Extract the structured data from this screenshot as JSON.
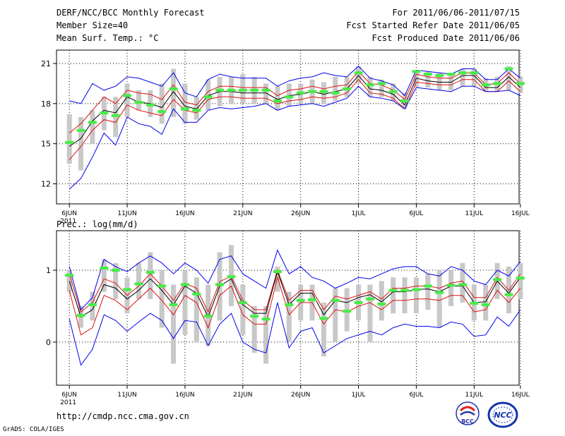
{
  "header": {
    "title": "DERF/NCC/BCC Monthly Forecast",
    "member_size": "Member Size=40",
    "variable_top": "Mean Surf. Temp.: °C",
    "period": "For 2011/06/06-2011/07/15",
    "started": "Fcst Started Refer Date 2011/06/05",
    "produced": "Fcst Produced Date 2011/06/06"
  },
  "footer": {
    "url": "http://cmdp.ncc.cma.gov.cn",
    "credit": "GrADS: COLA/IGES",
    "logo_bcc": "BCC",
    "logo_ncc": "NCC"
  },
  "colors": {
    "ensemble_bar": "#c8c8c8",
    "observed_marker": "#44ee44",
    "ensemble_mean": "#000000",
    "spread_band": "#dd1111",
    "extreme_band": "#0000ee"
  },
  "chart_data": [
    {
      "type": "line",
      "title": "Mean Surf. Temp.: °C",
      "xlabel": "",
      "ylabel": "",
      "ylim": [
        10.5,
        22
      ],
      "yticks": [
        12,
        15,
        18,
        21
      ],
      "x_ticks": [
        {
          "day": 1,
          "label": "6JUN"
        },
        {
          "day": 6,
          "label": "11JUN"
        },
        {
          "day": 11,
          "label": "16JUN"
        },
        {
          "day": 16,
          "label": "21JUN"
        },
        {
          "day": 21,
          "label": "26JUN"
        },
        {
          "day": 26,
          "label": "1JUL"
        },
        {
          "day": 31,
          "label": "6JUL"
        },
        {
          "day": 36,
          "label": "11JUL"
        },
        {
          "day": 40,
          "label": "16JUL"
        }
      ],
      "year_label": "2011",
      "days": [
        1,
        2,
        3,
        4,
        5,
        6,
        7,
        8,
        9,
        10,
        11,
        12,
        13,
        14,
        15,
        16,
        17,
        18,
        19,
        20,
        21,
        22,
        23,
        24,
        25,
        26,
        27,
        28,
        29,
        30,
        31,
        32,
        33,
        34,
        35,
        36,
        37,
        38,
        39,
        40
      ],
      "series": [
        {
          "name": "max",
          "role": "extreme",
          "values": [
            18.2,
            18.0,
            19.5,
            19.0,
            19.3,
            20.0,
            19.9,
            19.6,
            19.3,
            20.3,
            18.8,
            18.5,
            19.8,
            20.2,
            20.0,
            19.9,
            19.9,
            19.9,
            19.3,
            19.7,
            19.9,
            20.0,
            20.3,
            20.1,
            20.0,
            20.8,
            19.9,
            19.7,
            19.4,
            18.6,
            20.5,
            20.4,
            20.3,
            20.2,
            20.6,
            20.6,
            19.8,
            19.8,
            20.6,
            19.9
          ]
        },
        {
          "name": "mean_plus_sd",
          "role": "spread",
          "values": [
            15.8,
            16.5,
            17.5,
            18.5,
            18.0,
            19.0,
            18.8,
            18.7,
            18.3,
            19.4,
            18.1,
            17.9,
            18.9,
            19.3,
            19.3,
            19.2,
            19.2,
            19.2,
            18.6,
            19.0,
            19.1,
            19.3,
            19.1,
            19.3,
            19.4,
            20.4,
            19.5,
            19.4,
            19.0,
            18.3,
            20.2,
            20.0,
            19.9,
            19.9,
            20.3,
            20.3,
            19.4,
            19.5,
            20.3,
            19.5
          ]
        },
        {
          "name": "mean",
          "role": "mean",
          "values": [
            14.8,
            15.4,
            16.7,
            17.5,
            17.3,
            18.5,
            18.1,
            18.0,
            17.7,
            18.9,
            17.8,
            17.6,
            18.6,
            18.9,
            18.9,
            18.8,
            18.8,
            18.8,
            18.3,
            18.6,
            18.7,
            18.9,
            18.7,
            18.9,
            19.1,
            20.1,
            19.1,
            19.0,
            18.7,
            17.9,
            19.9,
            19.7,
            19.6,
            19.6,
            20.1,
            20.1,
            19.2,
            19.2,
            20.0,
            19.2
          ]
        },
        {
          "name": "mean_minus_sd",
          "role": "spread",
          "values": [
            13.8,
            14.8,
            16.0,
            16.8,
            16.6,
            17.9,
            17.5,
            17.3,
            17.1,
            18.3,
            17.5,
            17.3,
            18.3,
            18.5,
            18.5,
            18.4,
            18.4,
            18.4,
            18.0,
            18.2,
            18.3,
            18.5,
            18.4,
            18.5,
            18.8,
            19.8,
            18.8,
            18.7,
            18.4,
            17.6,
            19.6,
            19.5,
            19.4,
            19.4,
            19.8,
            19.8,
            18.9,
            18.9,
            19.7,
            18.9
          ]
        },
        {
          "name": "min",
          "role": "extreme",
          "values": [
            11.6,
            12.4,
            14.0,
            15.8,
            14.9,
            17.0,
            16.5,
            16.3,
            15.7,
            17.6,
            16.6,
            16.6,
            17.5,
            17.7,
            17.6,
            17.7,
            17.8,
            18.0,
            17.5,
            17.8,
            17.9,
            18.0,
            17.8,
            18.1,
            18.4,
            19.3,
            18.5,
            18.4,
            18.2,
            17.6,
            19.2,
            19.1,
            19.0,
            18.9,
            19.3,
            19.3,
            18.9,
            18.9,
            19.0,
            18.6
          ]
        }
      ],
      "observed": [
        15.1,
        16.0,
        16.6,
        17.3,
        17.1,
        18.6,
        18.1,
        17.9,
        17.4,
        19.1,
        17.6,
        17.5,
        18.5,
        19.0,
        19.0,
        19.0,
        19.0,
        19.0,
        18.2,
        18.5,
        18.8,
        18.9,
        18.9,
        18.8,
        19.1,
        20.3,
        19.4,
        19.5,
        18.9,
        18.2,
        20.4,
        20.2,
        20.1,
        20.2,
        20.3,
        20.3,
        19.4,
        19.5,
        20.6,
        19.5
      ],
      "ensemble_range": [
        [
          13.5,
          17.2
        ],
        [
          13.0,
          17.0
        ],
        [
          15.0,
          17.5
        ],
        [
          16.0,
          18.5
        ],
        [
          15.5,
          18.5
        ],
        [
          17.0,
          19.5
        ],
        [
          17.5,
          19.0
        ],
        [
          17.0,
          19.0
        ],
        [
          16.5,
          19.5
        ],
        [
          17.0,
          20.6
        ],
        [
          16.5,
          19.5
        ],
        [
          16.8,
          18.5
        ],
        [
          17.5,
          19.8
        ],
        [
          17.8,
          20.0
        ],
        [
          18.0,
          20.0
        ],
        [
          18.0,
          20.2
        ],
        [
          18.0,
          20.0
        ],
        [
          18.0,
          19.5
        ],
        [
          17.5,
          19.3
        ],
        [
          17.8,
          19.5
        ],
        [
          18.0,
          19.5
        ],
        [
          18.0,
          19.8
        ],
        [
          18.0,
          19.6
        ],
        [
          18.2,
          20.0
        ],
        [
          18.5,
          20.0
        ],
        [
          19.5,
          20.8
        ],
        [
          18.5,
          20.0
        ],
        [
          18.5,
          19.8
        ],
        [
          18.2,
          19.5
        ],
        [
          17.6,
          18.8
        ],
        [
          19.2,
          20.5
        ],
        [
          19.2,
          20.4
        ],
        [
          19.0,
          20.3
        ],
        [
          19.0,
          20.3
        ],
        [
          19.3,
          20.6
        ],
        [
          19.3,
          20.6
        ],
        [
          18.9,
          19.9
        ],
        [
          18.9,
          20.0
        ],
        [
          19.0,
          20.8
        ],
        [
          18.8,
          20.0
        ]
      ]
    },
    {
      "type": "line",
      "title": "Prec.: log(mm/d)",
      "xlabel": "",
      "ylabel": "",
      "ylim": [
        -0.6,
        1.55
      ],
      "yticks": [
        0,
        1
      ],
      "x_ticks": [
        {
          "day": 1,
          "label": "6JUN"
        },
        {
          "day": 6,
          "label": "11JUN"
        },
        {
          "day": 11,
          "label": "16JUN"
        },
        {
          "day": 16,
          "label": "21JUN"
        },
        {
          "day": 21,
          "label": "26JUN"
        },
        {
          "day": 26,
          "label": "1JUL"
        },
        {
          "day": 31,
          "label": "6JUL"
        },
        {
          "day": 36,
          "label": "11JUL"
        },
        {
          "day": 40,
          "label": "16JUL"
        }
      ],
      "year_label": "2011",
      "days": [
        1,
        2,
        3,
        4,
        5,
        6,
        7,
        8,
        9,
        10,
        11,
        12,
        13,
        14,
        15,
        16,
        17,
        18,
        19,
        20,
        21,
        22,
        23,
        24,
        25,
        26,
        27,
        28,
        29,
        30,
        31,
        32,
        33,
        34,
        35,
        36,
        37,
        38,
        39,
        40
      ],
      "series": [
        {
          "name": "max",
          "role": "extreme",
          "values": [
            1.05,
            0.45,
            0.62,
            1.15,
            1.05,
            0.98,
            1.1,
            1.2,
            1.1,
            0.95,
            1.1,
            1.0,
            0.82,
            1.15,
            1.2,
            0.95,
            0.85,
            0.75,
            1.28,
            0.95,
            1.05,
            0.9,
            0.85,
            0.75,
            0.82,
            0.9,
            0.88,
            0.95,
            1.02,
            1.05,
            1.05,
            0.95,
            0.92,
            1.05,
            1.0,
            0.85,
            0.8,
            1.0,
            0.92,
            1.12
          ]
        },
        {
          "name": "mean_plus_sd",
          "role": "spread",
          "values": [
            0.95,
            0.42,
            0.55,
            0.88,
            0.82,
            0.65,
            0.78,
            0.95,
            0.78,
            0.58,
            0.82,
            0.75,
            0.42,
            0.84,
            0.92,
            0.58,
            0.45,
            0.45,
            1.0,
            0.58,
            0.72,
            0.72,
            0.45,
            0.64,
            0.6,
            0.65,
            0.7,
            0.6,
            0.75,
            0.75,
            0.78,
            0.78,
            0.75,
            0.82,
            0.85,
            0.62,
            0.62,
            0.9,
            0.72,
            0.95
          ]
        },
        {
          "name": "mean",
          "role": "mean",
          "values": [
            0.85,
            0.35,
            0.45,
            0.8,
            0.75,
            0.6,
            0.72,
            0.88,
            0.72,
            0.52,
            0.78,
            0.68,
            0.35,
            0.78,
            0.88,
            0.52,
            0.4,
            0.4,
            0.98,
            0.52,
            0.68,
            0.68,
            0.38,
            0.58,
            0.55,
            0.62,
            0.66,
            0.56,
            0.7,
            0.7,
            0.73,
            0.74,
            0.7,
            0.78,
            0.78,
            0.55,
            0.56,
            0.85,
            0.68,
            0.9
          ]
        },
        {
          "name": "mean_minus_sd",
          "role": "spread",
          "values": [
            0.72,
            0.1,
            0.2,
            0.65,
            0.58,
            0.45,
            0.6,
            0.75,
            0.58,
            0.38,
            0.65,
            0.55,
            0.2,
            0.65,
            0.78,
            0.38,
            0.25,
            0.25,
            0.9,
            0.38,
            0.55,
            0.55,
            0.25,
            0.45,
            0.42,
            0.5,
            0.55,
            0.45,
            0.58,
            0.58,
            0.6,
            0.6,
            0.58,
            0.65,
            0.65,
            0.42,
            0.45,
            0.72,
            0.55,
            0.75
          ]
        },
        {
          "name": "min",
          "role": "extreme",
          "values": [
            0.32,
            -0.32,
            -0.1,
            0.38,
            0.3,
            0.15,
            0.28,
            0.4,
            0.3,
            0.05,
            0.3,
            0.28,
            -0.05,
            0.25,
            0.4,
            0.0,
            -0.1,
            -0.15,
            0.55,
            -0.08,
            0.15,
            0.2,
            -0.15,
            -0.05,
            0.05,
            0.1,
            0.15,
            0.1,
            0.2,
            0.25,
            0.22,
            0.22,
            0.2,
            0.28,
            0.25,
            0.08,
            0.1,
            0.35,
            0.22,
            0.45
          ]
        }
      ],
      "observed": [
        0.93,
        0.37,
        0.52,
        1.03,
        1.0,
        0.73,
        0.81,
        0.97,
        0.78,
        0.52,
        0.8,
        0.67,
        0.36,
        0.8,
        0.91,
        0.55,
        0.36,
        0.32,
        0.98,
        0.52,
        0.58,
        0.59,
        0.33,
        0.58,
        0.43,
        0.55,
        0.6,
        0.53,
        0.72,
        0.72,
        0.73,
        0.78,
        0.69,
        0.79,
        0.8,
        0.54,
        0.52,
        0.87,
        0.66,
        0.89
      ],
      "ensemble_range": [
        [
          0.7,
          1.0
        ],
        [
          0.2,
          0.5
        ],
        [
          0.3,
          0.7
        ],
        [
          0.7,
          1.15
        ],
        [
          0.6,
          1.1
        ],
        [
          0.4,
          0.9
        ],
        [
          0.6,
          1.1
        ],
        [
          0.6,
          1.25
        ],
        [
          0.2,
          1.0
        ],
        [
          -0.3,
          0.8
        ],
        [
          0.1,
          1.0
        ],
        [
          0.0,
          0.9
        ],
        [
          -0.05,
          0.8
        ],
        [
          0.3,
          1.25
        ],
        [
          0.5,
          1.35
        ],
        [
          0.1,
          0.8
        ],
        [
          -0.15,
          0.5
        ],
        [
          -0.3,
          0.5
        ],
        [
          0.7,
          1.05
        ],
        [
          0.0,
          0.7
        ],
        [
          0.3,
          0.8
        ],
        [
          0.3,
          0.8
        ],
        [
          -0.2,
          0.55
        ],
        [
          0.0,
          0.75
        ],
        [
          0.15,
          0.75
        ],
        [
          0.3,
          0.8
        ],
        [
          0.0,
          0.8
        ],
        [
          0.3,
          0.85
        ],
        [
          0.4,
          0.9
        ],
        [
          0.4,
          0.9
        ],
        [
          0.4,
          0.9
        ],
        [
          0.45,
          0.95
        ],
        [
          0.2,
          1.0
        ],
        [
          0.5,
          1.0
        ],
        [
          0.55,
          1.1
        ],
        [
          0.3,
          0.8
        ],
        [
          0.3,
          0.8
        ],
        [
          0.6,
          1.1
        ],
        [
          0.4,
          1.05
        ],
        [
          0.6,
          1.1
        ]
      ]
    }
  ]
}
